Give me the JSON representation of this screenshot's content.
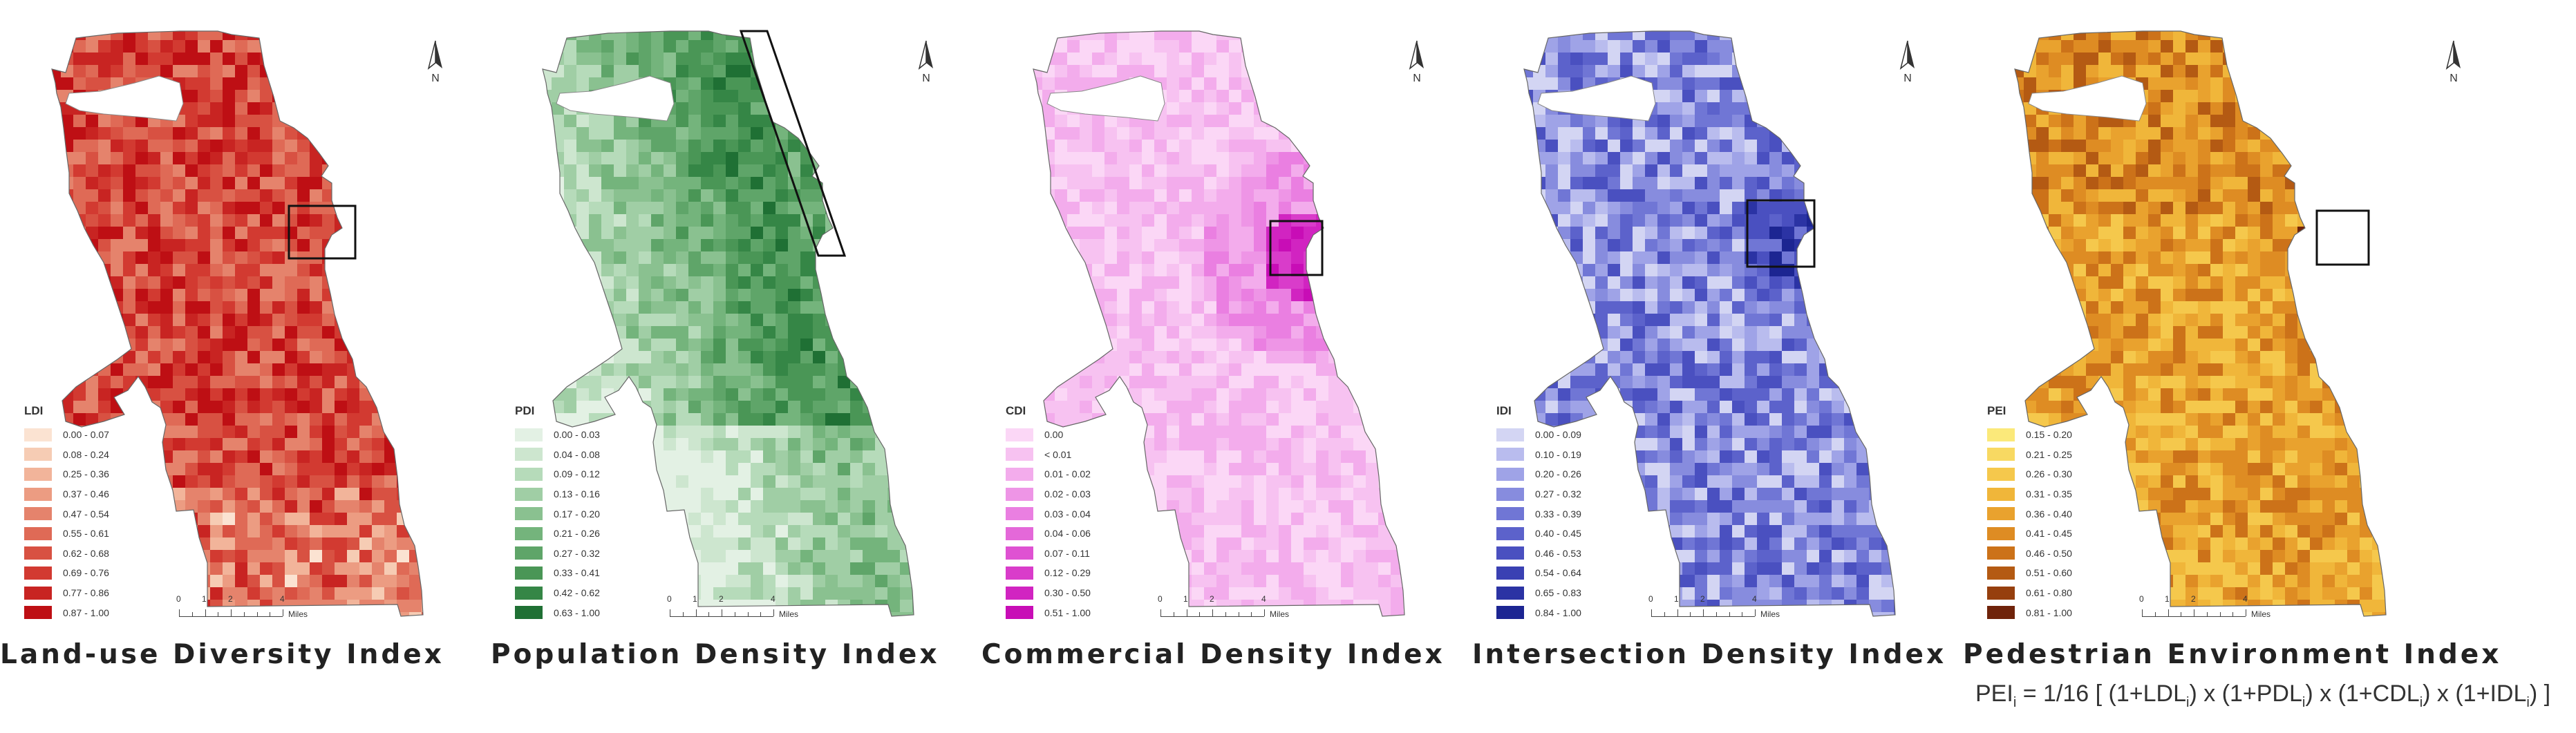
{
  "north_label": "N",
  "scale": {
    "ticks": [
      "0",
      "1",
      "2",
      "4"
    ],
    "unit": "Miles"
  },
  "panels": [
    {
      "id": "ldi",
      "title": "Land-use Diversity Index",
      "legend_title": "LDI",
      "classes": [
        "0.00 - 0.07",
        "0.08 - 0.24",
        "0.25 - 0.36",
        "0.37 - 0.46",
        "0.47 - 0.54",
        "0.55 - 0.61",
        "0.62 - 0.68",
        "0.69 - 0.76",
        "0.77 - 0.86",
        "0.87 - 1.00"
      ],
      "colors": [
        "#fbe3d2",
        "#f6ccb4",
        "#f2b49a",
        "#ec9c82",
        "#e5836c",
        "#df6a56",
        "#d85142",
        "#d23a31",
        "#c82422",
        "#be0f14"
      ],
      "highlight_icon": "square-highlight"
    },
    {
      "id": "pdi",
      "title": "Population Density Index",
      "legend_title": "PDI",
      "classes": [
        "0.00 - 0.03",
        "0.04 - 0.08",
        "0.09 - 0.12",
        "0.13 - 0.16",
        "0.17 - 0.20",
        "0.21 - 0.26",
        "0.27 - 0.32",
        "0.33 - 0.41",
        "0.42 - 0.62",
        "0.63 - 1.00"
      ],
      "colors": [
        "#e3f1e4",
        "#cde6cf",
        "#b6dbba",
        "#a0cea5",
        "#8ac190",
        "#74b47c",
        "#5fa569",
        "#4a9656",
        "#358646",
        "#1f7034"
      ],
      "highlight_icon": "parallelogram-highlight"
    },
    {
      "id": "cdi",
      "title": "Commercial Density Index",
      "legend_title": "CDI",
      "classes": [
        "0.00",
        "< 0.01",
        "0.01 - 0.02",
        "0.02 - 0.03",
        "0.03 - 0.04",
        "0.04 - 0.06",
        "0.07 - 0.11",
        "0.12 - 0.29",
        "0.30 - 0.50",
        "0.51 - 1.00"
      ],
      "colors": [
        "#fbd7f6",
        "#f7c2f1",
        "#f3acec",
        "#ee95e6",
        "#ea7fe1",
        "#e468d9",
        "#df52d2",
        "#d93cca",
        "#d124c1",
        "#c80db6"
      ],
      "highlight_icon": "square-highlight"
    },
    {
      "id": "idi",
      "title": "Intersection Density Index",
      "legend_title": "IDI",
      "classes": [
        "0.00 - 0.09",
        "0.10 - 0.19",
        "0.20 - 0.26",
        "0.27 - 0.32",
        "0.33 - 0.39",
        "0.40 - 0.45",
        "0.46 - 0.53",
        "0.54 - 0.64",
        "0.65 - 0.83",
        "0.84 - 1.00"
      ],
      "colors": [
        "#d3d5f3",
        "#b9bcee",
        "#9fa3e7",
        "#878cde",
        "#7076d5",
        "#5c62cb",
        "#4a50c0",
        "#3a41b3",
        "#2b33a4",
        "#1c2592"
      ],
      "highlight_icon": "square-highlight"
    },
    {
      "id": "pei",
      "title": "Pedestrian Environment Index",
      "legend_title": "PEI",
      "classes": [
        "0.15 - 0.20",
        "0.21 - 0.25",
        "0.26 - 0.30",
        "0.31 - 0.35",
        "0.36 - 0.40",
        "0.41 - 0.45",
        "0.46 - 0.50",
        "0.51 - 0.60",
        "0.61 - 0.80",
        "0.81 - 1.00"
      ],
      "colors": [
        "#fbe97a",
        "#f8d962",
        "#f5c84c",
        "#f0b63a",
        "#e9a22e",
        "#de8c23",
        "#cc7219",
        "#b45a13",
        "#963f0e",
        "#6f230a"
      ],
      "highlight_icon": "square-highlight"
    }
  ],
  "formula": {
    "prefix": "PEI",
    "sub_i": "i",
    "eq": " = 1/16 [ (1+LDL",
    "p1": ") x (1+PDL",
    "p2": ") x (1+CDL",
    "p3": ") x (1+IDL",
    "p4": ") ]"
  }
}
